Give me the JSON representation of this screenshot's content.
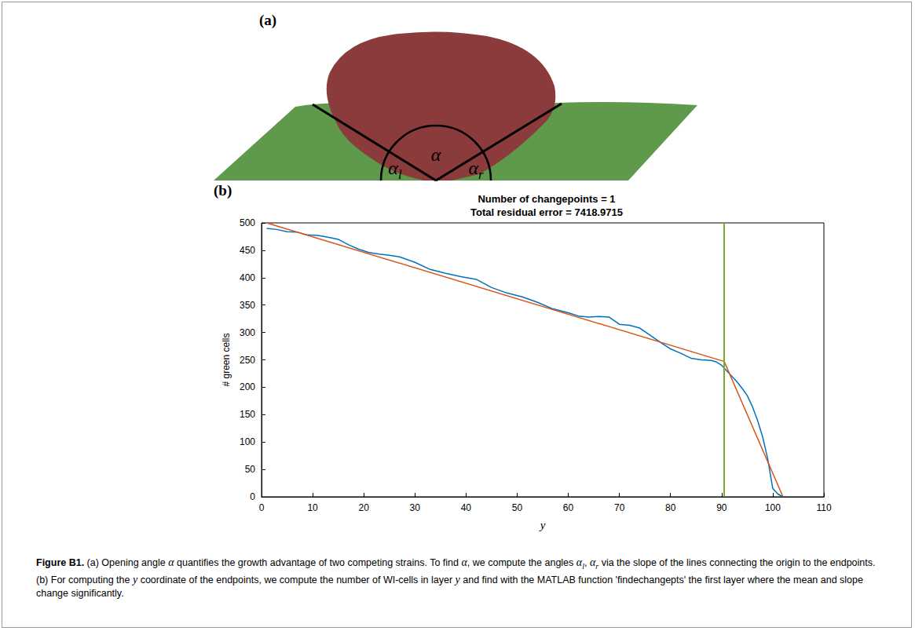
{
  "panel_a": {
    "label": "(a)",
    "annotations": [
      {
        "text": "α"
      },
      {
        "text": "α",
        "sub": "l"
      },
      {
        "text": "α",
        "sub": "r"
      }
    ]
  },
  "panel_b": {
    "label": "(b)"
  },
  "chart_data": {
    "type": "line",
    "title": [
      "Number of changepoints = 1",
      "Total residual error = 7418.9715"
    ],
    "x_label": "y",
    "y_label": "# green cells",
    "xlim": [
      0,
      110
    ],
    "xticks": [
      0,
      10,
      20,
      30,
      40,
      50,
      60,
      70,
      80,
      90,
      100,
      110
    ],
    "ylim": [
      0,
      500
    ],
    "yticks": [
      0,
      50,
      100,
      150,
      200,
      250,
      300,
      350,
      400,
      450,
      500
    ],
    "grid": false,
    "series": [
      {
        "color": "#0072BD",
        "x": [
          1,
          3,
          5,
          7,
          9,
          11,
          13,
          15,
          17,
          19,
          21,
          23,
          25,
          27,
          30,
          33,
          36,
          39,
          42,
          45,
          48,
          51,
          54,
          57,
          60,
          62,
          64,
          66,
          68,
          70,
          72,
          74,
          76,
          78,
          80,
          82,
          84,
          86,
          88,
          89,
          90,
          91,
          92,
          93,
          94,
          95,
          96,
          97,
          98,
          99,
          100,
          101,
          102
        ],
        "values": [
          490,
          488,
          484,
          483,
          478,
          477,
          474,
          470,
          460,
          452,
          446,
          443,
          441,
          438,
          428,
          415,
          408,
          402,
          397,
          382,
          372,
          365,
          355,
          343,
          336,
          330,
          328,
          329,
          328,
          315,
          313,
          308,
          295,
          282,
          270,
          262,
          253,
          250,
          249,
          246,
          240,
          230,
          220,
          210,
          198,
          185,
          165,
          140,
          110,
          70,
          15,
          5,
          0
        ]
      },
      {
        "color": "#D95319",
        "x": [
          1,
          90.5,
          102
        ],
        "values": [
          500,
          247,
          0
        ]
      }
    ],
    "changepoint": {
      "x": 90.5,
      "color": "#77AC30"
    }
  },
  "caption": {
    "label": "Figure B1.",
    "parts": [
      {
        "text": " (a) Opening angle "
      },
      {
        "text": "α",
        "italic": true
      },
      {
        "text": " quantifies the growth advantage of two competing strains. To find "
      },
      {
        "text": "α",
        "italic": true
      },
      {
        "text": ", we compute the angles "
      },
      {
        "text": "α",
        "italic": true,
        "sub": "l"
      },
      {
        "text": ", "
      },
      {
        "text": "α",
        "italic": true,
        "sub": "r"
      },
      {
        "text": " via the slope of the lines connecting the origin to the endpoints. (b) For computing the "
      },
      {
        "text": "y",
        "italic": true
      },
      {
        "text": " coordinate of the endpoints, we compute the number of WI-cells in layer "
      },
      {
        "text": "y",
        "italic": true
      },
      {
        "text": " and find with the MATLAB function 'findechangepts' the first layer where the mean and slope change significantly."
      }
    ]
  }
}
